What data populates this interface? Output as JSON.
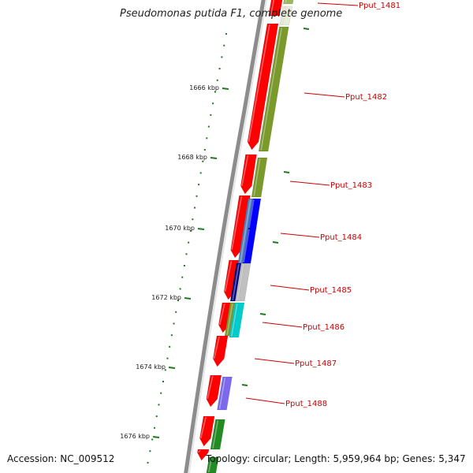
{
  "header": {
    "title": "Pseudomonas putida F1, complete genome"
  },
  "footer": {
    "accession": "Accession: NC_009512",
    "stats": "Topology: circular; Length: 5,959,964 bp; Genes: 5,347"
  },
  "ticks": [
    {
      "label": "1666 kbp"
    },
    {
      "label": "1668 kbp"
    },
    {
      "label": "1670 kbp"
    },
    {
      "label": "1672 kbp"
    },
    {
      "label": "1674 kbp"
    },
    {
      "label": "1676 kbp"
    }
  ],
  "genes": [
    {
      "label": "Pput_1481"
    },
    {
      "label": "Pput_1482"
    },
    {
      "label": "Pput_1483"
    },
    {
      "label": "Pput_1484"
    },
    {
      "label": "Pput_1485"
    },
    {
      "label": "Pput_1486"
    },
    {
      "label": "Pput_1487"
    },
    {
      "label": "Pput_1488"
    }
  ],
  "colors": {
    "backbone": "#8c8c8c",
    "cds": "#ff0000",
    "tick": "#1e7a1e",
    "label": "#cc0000",
    "olive": "#7a9a2a",
    "blue": "#0000ff",
    "steelblue": "#4a7fc0",
    "navy": "#000080",
    "gray": "#c0c0c0",
    "cyan": "#00cccc",
    "purple": "#7b68ee",
    "green": "#228b22"
  }
}
